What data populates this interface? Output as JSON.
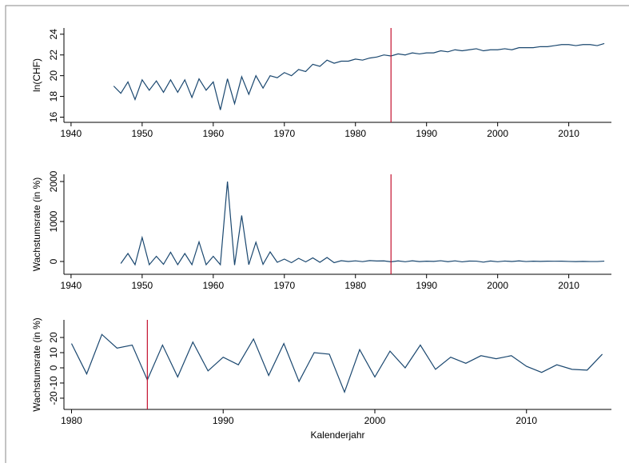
{
  "chart_data": [
    {
      "type": "line",
      "ylabel": "ln(CHF)",
      "color": "#1a476f",
      "x": [
        1946,
        1947,
        1948,
        1949,
        1950,
        1951,
        1952,
        1953,
        1954,
        1955,
        1956,
        1957,
        1958,
        1959,
        1960,
        1961,
        1962,
        1963,
        1964,
        1965,
        1966,
        1967,
        1968,
        1969,
        1970,
        1971,
        1972,
        1973,
        1974,
        1975,
        1976,
        1977,
        1978,
        1979,
        1980,
        1981,
        1982,
        1983,
        1984,
        1985,
        1986,
        1987,
        1988,
        1989,
        1990,
        1991,
        1992,
        1993,
        1994,
        1995,
        1996,
        1997,
        1998,
        1999,
        2000,
        2001,
        2002,
        2003,
        2004,
        2005,
        2006,
        2007,
        2008,
        2009,
        2010,
        2011,
        2012,
        2013,
        2014,
        2015
      ],
      "values": [
        19.0,
        18.3,
        19.4,
        17.7,
        19.6,
        18.6,
        19.5,
        18.4,
        19.6,
        18.4,
        19.6,
        17.9,
        19.7,
        18.6,
        19.4,
        16.7,
        19.7,
        17.3,
        19.9,
        18.2,
        20.0,
        18.8,
        20.0,
        19.8,
        20.3,
        20.0,
        20.6,
        20.4,
        21.1,
        20.9,
        21.5,
        21.2,
        21.4,
        21.4,
        21.6,
        21.5,
        21.7,
        21.8,
        22.0,
        21.9,
        22.1,
        22.0,
        22.2,
        22.1,
        22.2,
        22.2,
        22.4,
        22.3,
        22.5,
        22.4,
        22.5,
        22.6,
        22.4,
        22.5,
        22.5,
        22.6,
        22.5,
        22.7,
        22.7,
        22.7,
        22.8,
        22.8,
        22.9,
        23.0,
        23.0,
        22.9,
        23.0,
        23.0,
        22.9,
        23.1
      ],
      "xlim": [
        1939,
        2016
      ],
      "xticks": [
        1940,
        1950,
        1960,
        1970,
        1980,
        1990,
        2000,
        2010
      ],
      "ylim": [
        15.5,
        24.6
      ],
      "yticks": [
        16,
        18,
        20,
        22,
        24
      ],
      "vline": 1985,
      "vline_color": "#c4112f"
    },
    {
      "type": "line",
      "ylabel": "Wachstumsrate (in %)",
      "color": "#1a476f",
      "x": [
        1947,
        1948,
        1949,
        1950,
        1951,
        1952,
        1953,
        1954,
        1955,
        1956,
        1957,
        1958,
        1959,
        1960,
        1961,
        1962,
        1963,
        1964,
        1965,
        1966,
        1967,
        1968,
        1969,
        1970,
        1971,
        1972,
        1973,
        1974,
        1975,
        1976,
        1977,
        1978,
        1979,
        1980,
        1981,
        1982,
        1983,
        1984,
        1985,
        1986,
        1987,
        1988,
        1989,
        1990,
        1991,
        1992,
        1993,
        1994,
        1995,
        1996,
        1997,
        1998,
        1999,
        2000,
        2001,
        2002,
        2003,
        2004,
        2005,
        2006,
        2007,
        2008,
        2009,
        2010,
        2011,
        2012,
        2013,
        2014,
        2015
      ],
      "values": [
        -50,
        200,
        -80,
        600,
        -80,
        130,
        -70,
        230,
        -80,
        200,
        -80,
        490,
        -80,
        130,
        -80,
        2000,
        -90,
        1150,
        -80,
        480,
        -70,
        240,
        -20,
        60,
        -30,
        80,
        -10,
        90,
        -20,
        100,
        -30,
        20,
        0,
        16,
        -4,
        22,
        13,
        15,
        -8,
        15,
        -6,
        17,
        -2,
        7,
        2,
        19,
        -5,
        16,
        -9,
        10,
        9,
        -16,
        12,
        -6,
        11,
        0,
        15,
        -1,
        7,
        3,
        8,
        6,
        8,
        1,
        -3,
        2,
        -1,
        -1.5,
        9
      ],
      "xlim": [
        1939,
        2016
      ],
      "xticks": [
        1940,
        1950,
        1960,
        1970,
        1980,
        1990,
        2000,
        2010
      ],
      "ylim": [
        -320,
        2180
      ],
      "yticks": [
        0,
        1000,
        2000
      ],
      "vline": 1985,
      "vline_color": "#c4112f"
    },
    {
      "type": "line",
      "ylabel": "Wachstumsrate (in %)",
      "xlabel": "Kalenderjahr",
      "color": "#1a476f",
      "x": [
        1980,
        1981,
        1982,
        1983,
        1984,
        1985,
        1986,
        1987,
        1988,
        1989,
        1990,
        1991,
        1992,
        1993,
        1994,
        1995,
        1996,
        1997,
        1998,
        1999,
        2000,
        2001,
        2002,
        2003,
        2004,
        2005,
        2006,
        2007,
        2008,
        2009,
        2010,
        2011,
        2012,
        2013,
        2014,
        2015
      ],
      "values": [
        16,
        -4,
        22,
        13,
        15,
        -8,
        15,
        -6,
        17,
        -2,
        7,
        2,
        19,
        -5,
        16,
        -9,
        10,
        9,
        -16,
        12,
        -6,
        11,
        0,
        15,
        -1,
        7,
        3,
        8,
        6,
        8,
        1,
        -3,
        2,
        -1,
        -1.5,
        9
      ],
      "xlim": [
        1979.5,
        2015.6
      ],
      "xticks": [
        1980,
        1990,
        2000,
        2010
      ],
      "ylim": [
        -27.4,
        31.6
      ],
      "yticks": [
        -20,
        -10,
        0,
        10,
        20
      ],
      "vline": 1985,
      "vline_color": "#c4112f"
    }
  ]
}
